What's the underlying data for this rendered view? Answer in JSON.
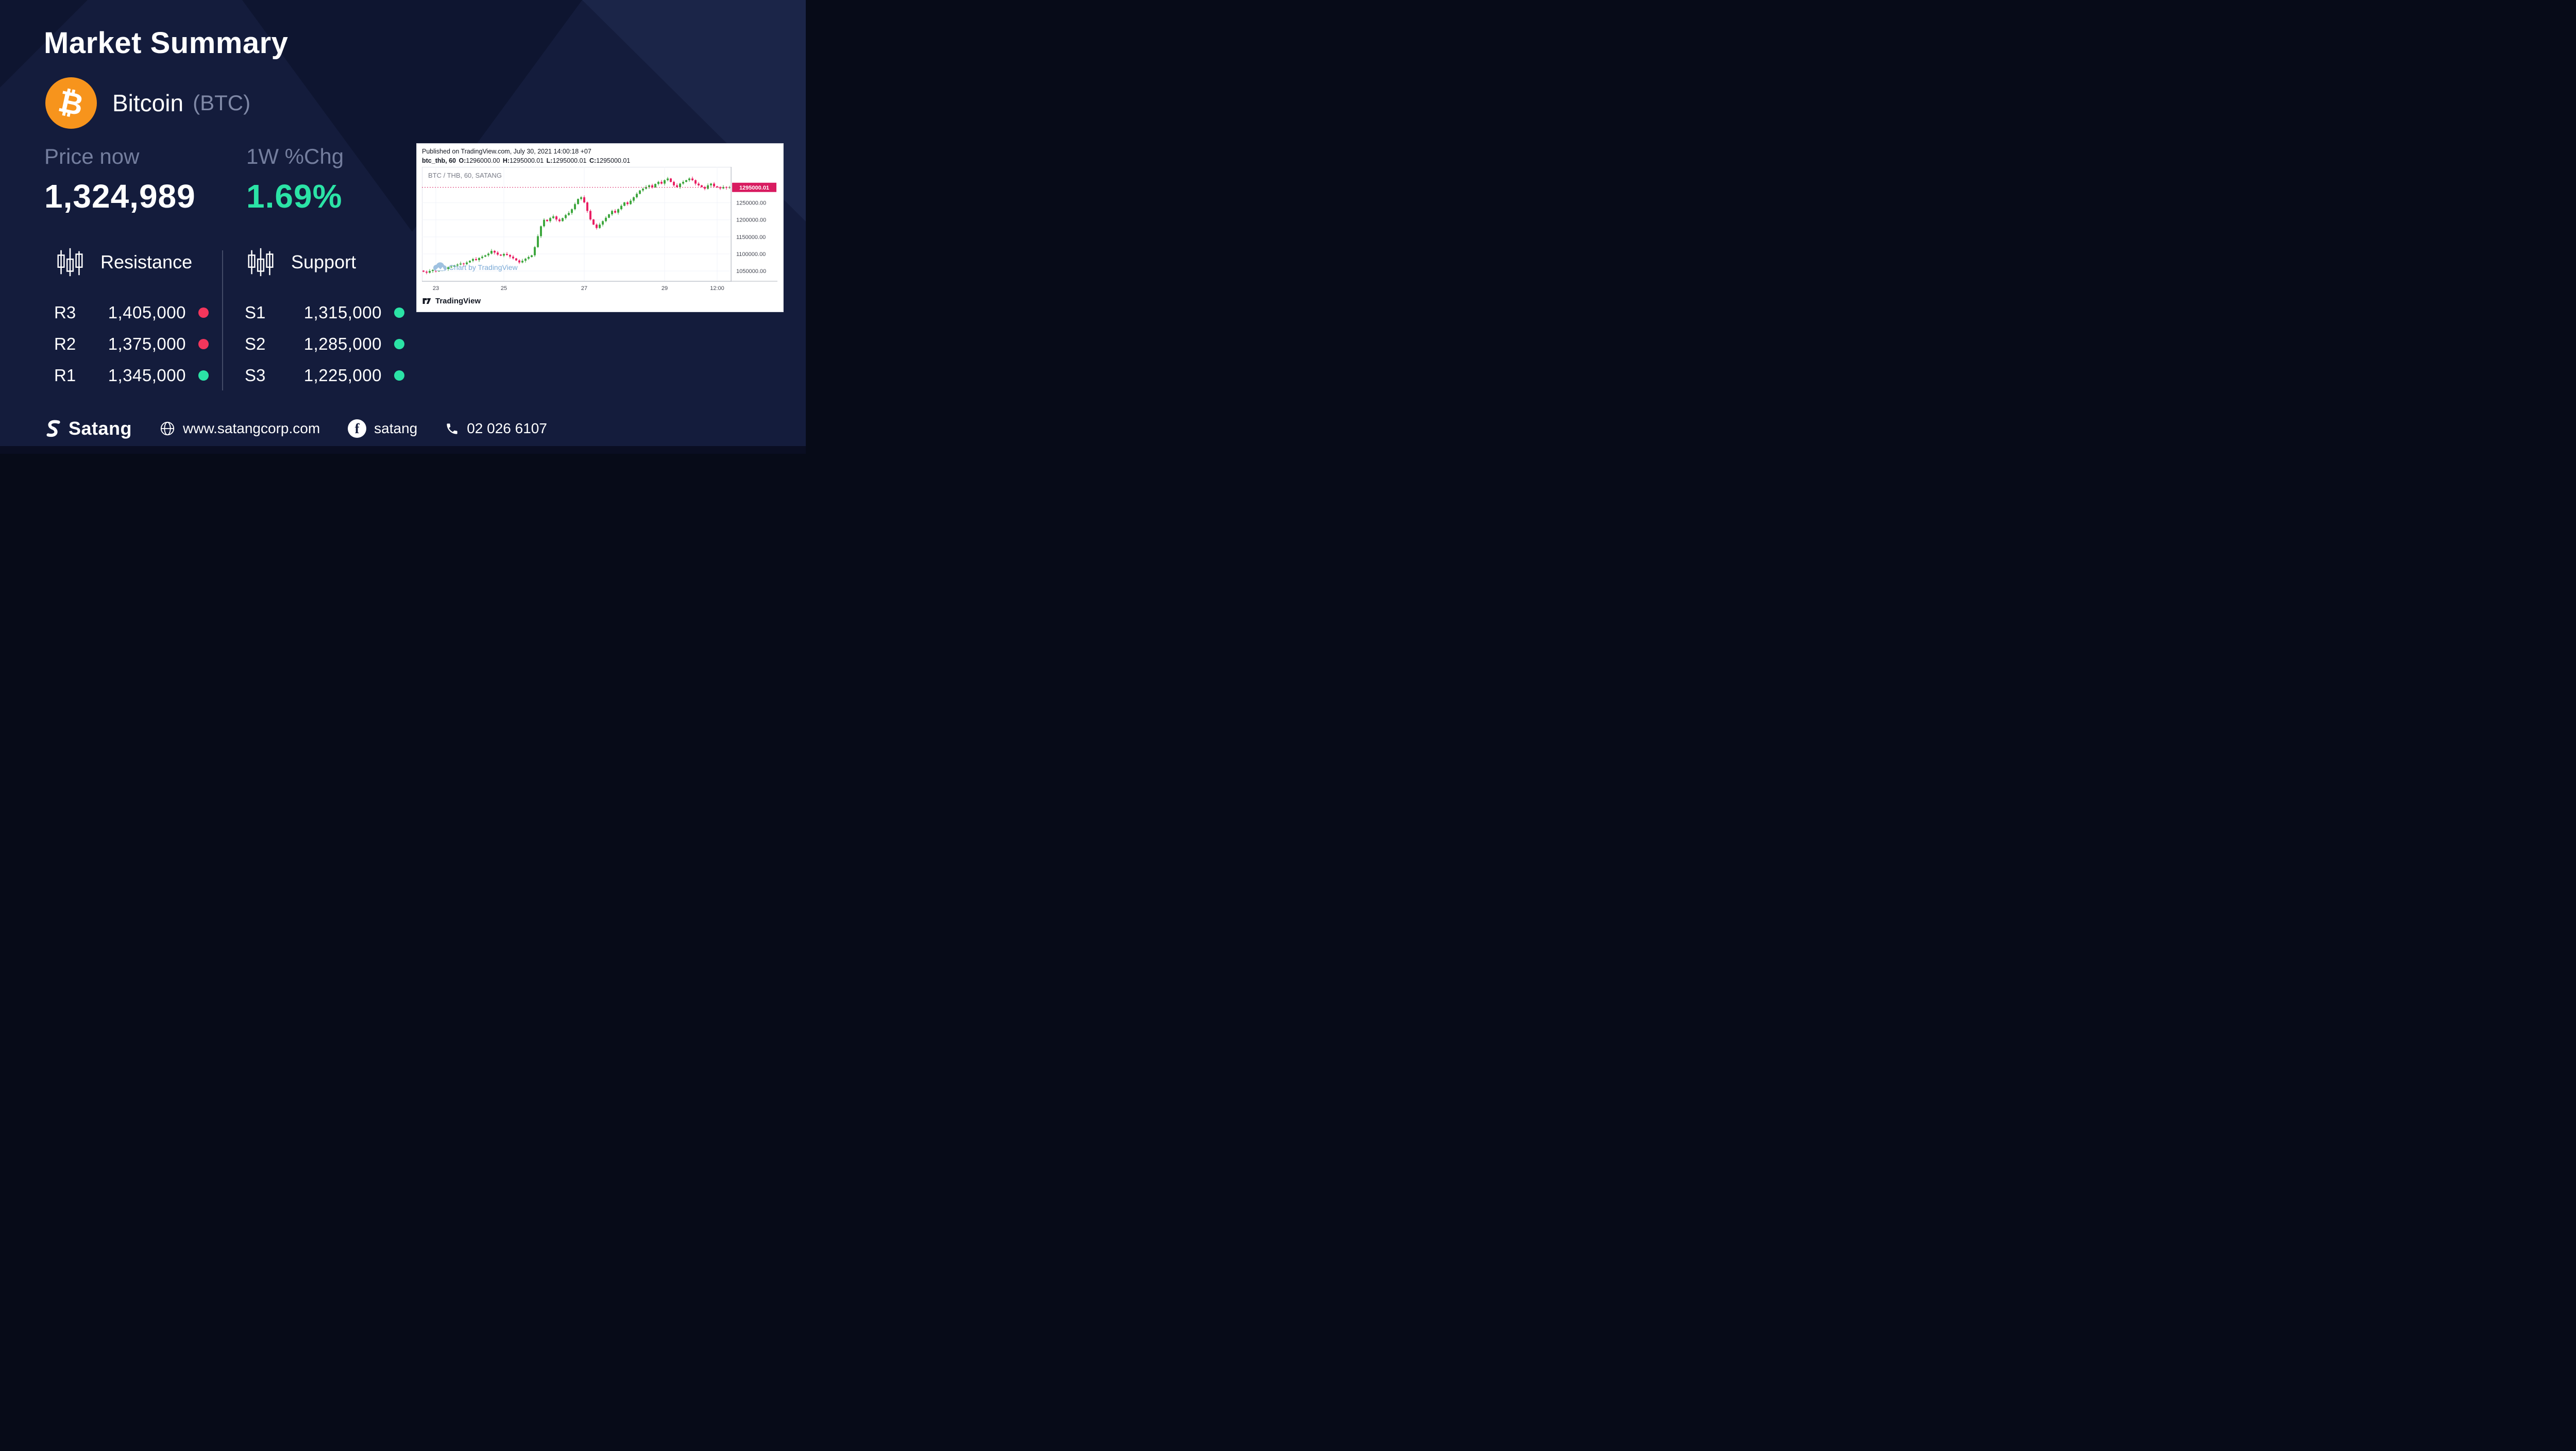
{
  "title": "Market Summary",
  "asset": {
    "name": "Bitcoin",
    "ticker": "(BTC)",
    "symbol": "₿"
  },
  "stats": {
    "price_label": "Price now",
    "price": "1,324,989",
    "change_label": "1W %Chg",
    "change": "1.69%"
  },
  "levels": {
    "resistance": {
      "label": "Resistance",
      "rows": [
        {
          "name": "R3",
          "value": "1,405,000",
          "status": "red"
        },
        {
          "name": "R2",
          "value": "1,375,000",
          "status": "red"
        },
        {
          "name": "R1",
          "value": "1,345,000",
          "status": "green"
        }
      ]
    },
    "support": {
      "label": "Support",
      "rows": [
        {
          "name": "S1",
          "value": "1,315,000",
          "status": "green"
        },
        {
          "name": "S2",
          "value": "1,285,000",
          "status": "green"
        },
        {
          "name": "S3",
          "value": "1,225,000",
          "status": "green"
        }
      ]
    }
  },
  "chart_panel": {
    "published": "Published on TradingView.com, July 30, 2021 14:00:18 +07",
    "symbol": "btc_thb, 60",
    "ohlc": {
      "o_label": "O:",
      "o": "1296000.00",
      "h_label": "H:",
      "h": "1295000.01",
      "l_label": "L:",
      "l": "1295000.01",
      "c_label": "C:",
      "c": "1295000.01"
    },
    "chart_title": "BTC / THB, 60, SATANG",
    "watermark": "Chart by TradingView",
    "brand": "TradingView",
    "last_price_label": "1295000.01"
  },
  "chart_data": {
    "type": "candlestick",
    "title": "BTC / THB, 60, SATANG",
    "interval_minutes": 60,
    "ylim": [
      1020000,
      1355000
    ],
    "y_ticks": [
      1050000,
      1100000,
      1150000,
      1200000,
      1250000
    ],
    "y_tick_labels": [
      "1050000.00",
      "1100000.00",
      "1150000.00",
      "1200000.00",
      "1250000.00"
    ],
    "x_ticks": {
      "labels": [
        "23",
        "25",
        "27",
        "29",
        "12:00"
      ],
      "indices": [
        4,
        26,
        52,
        78,
        95
      ]
    },
    "last_price": 1295000.01,
    "closes": [
      1048000,
      1045000,
      1050000,
      1053000,
      1049000,
      1054000,
      1058000,
      1056000,
      1061000,
      1063000,
      1066000,
      1069000,
      1072000,
      1070000,
      1075000,
      1080000,
      1085000,
      1082000,
      1088000,
      1092000,
      1096000,
      1101000,
      1109000,
      1104000,
      1098000,
      1095000,
      1100000,
      1097000,
      1092000,
      1087000,
      1081000,
      1075000,
      1080000,
      1086000,
      1091000,
      1096000,
      1120000,
      1152000,
      1181000,
      1200000,
      1196000,
      1205000,
      1210000,
      1201000,
      1196000,
      1205000,
      1214000,
      1220000,
      1231000,
      1246000,
      1261000,
      1266000,
      1251000,
      1226000,
      1201000,
      1186000,
      1176000,
      1186000,
      1196000,
      1206000,
      1216000,
      1226000,
      1221000,
      1231000,
      1241000,
      1251000,
      1246000,
      1256000,
      1266000,
      1276000,
      1286000,
      1291000,
      1296000,
      1301000,
      1295000,
      1305000,
      1311000,
      1306000,
      1316000,
      1321000,
      1311000,
      1301000,
      1296000,
      1306000,
      1311000,
      1316000,
      1321000,
      1316000,
      1306000,
      1301000,
      1296000,
      1291000,
      1301000,
      1306000,
      1298000,
      1295000,
      1292000,
      1296000,
      1294000,
      1295000
    ]
  },
  "footer": {
    "brand": "Satang",
    "website": "www.satangcorp.com",
    "facebook": "satang",
    "phone": "02 026 6107"
  },
  "colors": {
    "green": "#2BE3A6",
    "red": "#F4365C",
    "orange": "#F7941C",
    "candle_up": "#3DA63D",
    "candle_down": "#E91E63",
    "price_line": "#D81B60"
  }
}
